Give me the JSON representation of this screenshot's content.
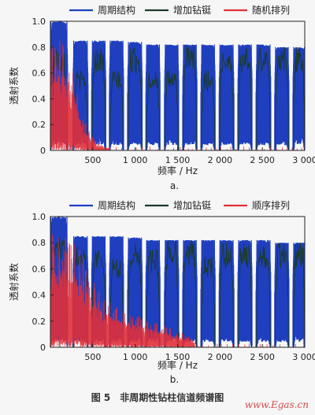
{
  "figure": {
    "caption": "图 5　非周期性钻柱信道频谱图",
    "watermark": "www.Egas.cn"
  },
  "chart_data": [
    {
      "type": "line",
      "panel_label": "a.",
      "xlabel": "频率 / Hz",
      "ylabel": "透射系数",
      "xlim": [
        0,
        3000
      ],
      "ylim": [
        0,
        1.0
      ],
      "xticks": [
        500,
        1000,
        1500,
        2000,
        2500,
        3000
      ],
      "xtick_labels": [
        "500",
        "1 000",
        "1 500",
        "2 000",
        "2 500",
        "3 000"
      ],
      "yticks": [
        0,
        0.2,
        0.4,
        0.6,
        0.8,
        1.0
      ],
      "ytick_labels": [
        "0",
        "0.2",
        "0.4",
        "0.6",
        "0.8",
        "1.0"
      ],
      "legend_position": "top",
      "series": [
        {
          "name": "周期结构",
          "color": "#1f3fbf",
          "style": "passband-oscillation",
          "passbands": [
            [
              0,
              200,
              1.0
            ],
            [
              270,
              440,
              0.85
            ],
            [
              490,
              650,
              0.85
            ],
            [
              700,
              860,
              0.85
            ],
            [
              915,
              1080,
              0.84
            ],
            [
              1130,
              1290,
              0.82
            ],
            [
              1350,
              1510,
              0.82
            ],
            [
              1565,
              1725,
              0.82
            ],
            [
              1780,
              1940,
              0.82
            ],
            [
              1995,
              2160,
              0.82
            ],
            [
              2215,
              2375,
              0.82
            ],
            [
              2430,
              2595,
              0.82
            ],
            [
              2650,
              2810,
              0.8
            ],
            [
              2865,
              3000,
              0.8
            ]
          ]
        },
        {
          "name": "增加钻铤",
          "color": "#1b3b2a",
          "style": "passband-jagged",
          "passbands": [
            [
              0,
              200,
              0.8
            ],
            [
              270,
              440,
              0.62
            ],
            [
              490,
              650,
              0.8
            ],
            [
              700,
              860,
              0.62
            ],
            [
              915,
              1080,
              0.8
            ],
            [
              1130,
              1290,
              0.62
            ],
            [
              1350,
              1510,
              0.62
            ],
            [
              1565,
              1725,
              0.8
            ],
            [
              1780,
              1940,
              0.62
            ],
            [
              1995,
              2160,
              0.8
            ],
            [
              2215,
              2375,
              0.8
            ],
            [
              2430,
              2595,
              0.8
            ],
            [
              2650,
              2810,
              0.8
            ],
            [
              2865,
              3000,
              0.8
            ]
          ]
        },
        {
          "name": "随机排列",
          "color": "#e0303a",
          "style": "noise",
          "x_range": [
            0,
            700
          ],
          "amplitude_envelope": [
            [
              0,
              0.87
            ],
            [
              180,
              0.87
            ],
            [
              260,
              0.76
            ],
            [
              320,
              0.45
            ],
            [
              400,
              0.25
            ],
            [
              480,
              0.12
            ],
            [
              560,
              0.06
            ],
            [
              640,
              0.04
            ],
            [
              700,
              0.02
            ]
          ]
        }
      ]
    },
    {
      "type": "line",
      "panel_label": "b.",
      "xlabel": "频率 / Hz",
      "ylabel": "透射系数",
      "xlim": [
        0,
        3000
      ],
      "ylim": [
        0,
        1.0
      ],
      "xticks": [
        500,
        1000,
        1500,
        2000,
        2500,
        3000
      ],
      "xtick_labels": [
        "500",
        "1 000",
        "1 500",
        "2 000",
        "2 500",
        "3 000"
      ],
      "yticks": [
        0,
        0.2,
        0.4,
        0.6,
        0.8,
        1.0
      ],
      "ytick_labels": [
        "0",
        "0.2",
        "0.4",
        "0.6",
        "0.8",
        "1.0"
      ],
      "legend_position": "top",
      "series": [
        {
          "name": "周期结构",
          "color": "#1f3fbf",
          "style": "passband-oscillation",
          "passbands": [
            [
              0,
              200,
              1.0
            ],
            [
              270,
              440,
              0.85
            ],
            [
              490,
              650,
              0.85
            ],
            [
              700,
              860,
              0.85
            ],
            [
              915,
              1080,
              0.84
            ],
            [
              1130,
              1290,
              0.82
            ],
            [
              1350,
              1510,
              0.82
            ],
            [
              1565,
              1725,
              0.82
            ],
            [
              1780,
              1940,
              0.82
            ],
            [
              1995,
              2160,
              0.82
            ],
            [
              2215,
              2375,
              0.82
            ],
            [
              2430,
              2595,
              0.82
            ],
            [
              2650,
              2810,
              0.8
            ],
            [
              2865,
              3000,
              0.8
            ]
          ]
        },
        {
          "name": "增加钻铤",
          "color": "#1b3b2a",
          "style": "passband-jagged",
          "passbands": [
            [
              0,
              200,
              0.85
            ],
            [
              270,
              440,
              0.82
            ],
            [
              490,
              650,
              0.8
            ],
            [
              700,
              860,
              0.7
            ],
            [
              915,
              1080,
              0.8
            ],
            [
              1130,
              1290,
              0.75
            ],
            [
              1350,
              1510,
              0.82
            ],
            [
              1565,
              1725,
              0.82
            ],
            [
              1780,
              1940,
              0.7
            ],
            [
              1995,
              2160,
              0.8
            ],
            [
              2215,
              2375,
              0.8
            ],
            [
              2430,
              2595,
              0.8
            ],
            [
              2650,
              2810,
              0.8
            ],
            [
              2865,
              3000,
              0.8
            ]
          ]
        },
        {
          "name": "顺序排列",
          "color": "#e0303a",
          "style": "noise",
          "x_range": [
            0,
            1700
          ],
          "amplitude_envelope": [
            [
              0,
              0.87
            ],
            [
              180,
              0.87
            ],
            [
              260,
              0.8
            ],
            [
              320,
              0.8
            ],
            [
              450,
              0.6
            ],
            [
              560,
              0.45
            ],
            [
              700,
              0.35
            ],
            [
              860,
              0.3
            ],
            [
              1000,
              0.25
            ],
            [
              1200,
              0.2
            ],
            [
              1400,
              0.15
            ],
            [
              1600,
              0.1
            ],
            [
              1700,
              0.06
            ]
          ]
        }
      ]
    }
  ]
}
